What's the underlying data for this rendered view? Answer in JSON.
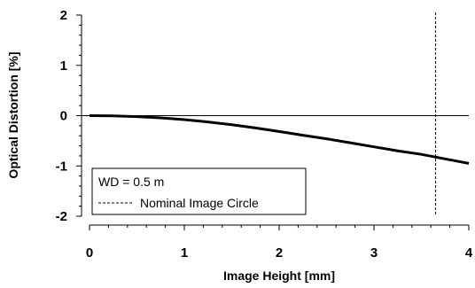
{
  "chart_data": {
    "type": "line",
    "xlabel": "Image Height [mm]",
    "ylabel": "Optical Distortion [%]",
    "xlim": [
      0,
      4
    ],
    "ylim": [
      -2,
      2
    ],
    "x_ticks": [
      "0",
      "1",
      "2",
      "3",
      "4"
    ],
    "y_ticks": [
      "2",
      "1",
      "0",
      "-1",
      "-2"
    ],
    "grid": false,
    "zero_line": true,
    "legend_position": "bottom-left",
    "series": [
      {
        "x": [
          0,
          0.25,
          0.5,
          0.75,
          1.0,
          1.25,
          1.5,
          1.75,
          2.0,
          2.25,
          2.5,
          2.75,
          3.0,
          3.25,
          3.5,
          3.75,
          4.0
        ],
        "y": [
          0,
          -0.005,
          -0.02,
          -0.045,
          -0.08,
          -0.125,
          -0.18,
          -0.245,
          -0.315,
          -0.39,
          -0.46,
          -0.54,
          -0.62,
          -0.7,
          -0.77,
          -0.86,
          -0.95
        ],
        "color": "#000000"
      }
    ],
    "reference_lines": [
      {
        "orientation": "vertical",
        "x": 3.65,
        "style": "dashed",
        "color": "#000000"
      }
    ],
    "legend": {
      "title": "WD = 0.5 m",
      "entries": [
        {
          "label": "Nominal Image Circle",
          "style": "dashed"
        }
      ]
    }
  }
}
